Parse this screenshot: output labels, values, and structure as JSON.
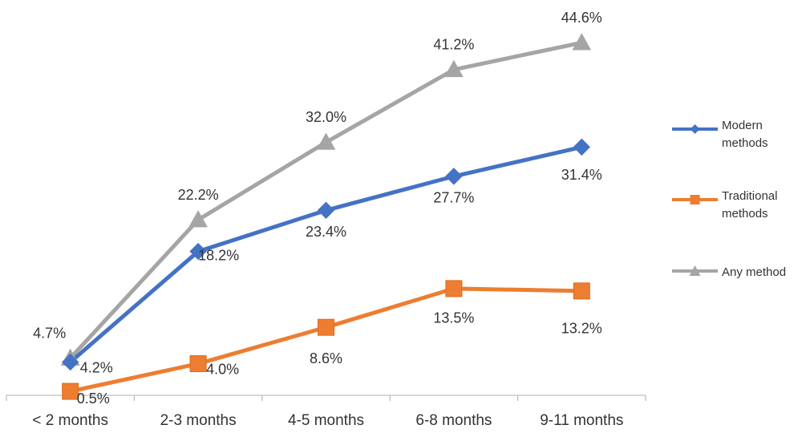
{
  "chart_data": {
    "type": "line",
    "title": "",
    "xlabel": "",
    "ylabel": "",
    "categories": [
      "< 2 months",
      "2-3 months",
      "4-5 months",
      "6-8 months",
      "9-11 months"
    ],
    "ylim": [
      0,
      50
    ],
    "grid": false,
    "legend_position": "right",
    "series": [
      {
        "name": "Modern methods",
        "marker": "diamond",
        "color": "#4472C4",
        "values": [
          4.2,
          18.2,
          23.4,
          27.7,
          31.4
        ],
        "labels": [
          "4.2%",
          "18.2%",
          "23.4%",
          "27.7%",
          "31.4%"
        ]
      },
      {
        "name": "Traditional methods",
        "marker": "square",
        "color": "#ED7D31",
        "values": [
          0.5,
          4.0,
          8.6,
          13.5,
          13.2
        ],
        "labels": [
          "0.5%",
          "4.0%",
          "8.6%",
          "13.5%",
          "13.2%"
        ]
      },
      {
        "name": "Any method",
        "marker": "triangle",
        "color": "#A5A5A5",
        "values": [
          4.7,
          22.2,
          32.0,
          41.2,
          44.6
        ],
        "labels": [
          "4.7%",
          "22.2%",
          "32.0%",
          "41.2%",
          "44.6%"
        ]
      }
    ]
  }
}
